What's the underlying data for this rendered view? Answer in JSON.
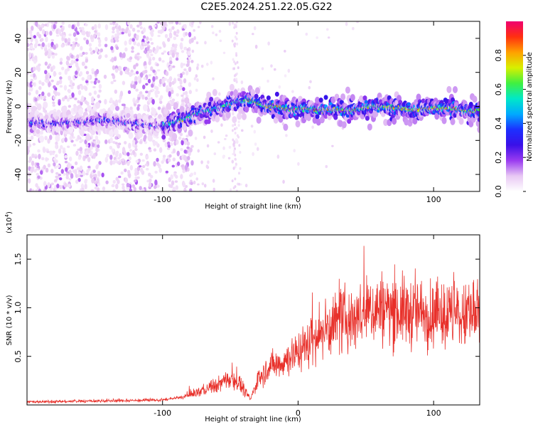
{
  "title": "C2E5.2024.251.22.05.G22",
  "chart_data": [
    {
      "type": "heatmap",
      "title": "C2E5.2024.251.22.05.G22",
      "xlabel": "Height of straight line (km)",
      "ylabel": "Frequency (Hz)",
      "xlim": [
        -200,
        134
      ],
      "ylim": [
        -50,
        50
      ],
      "x_ticks": [
        -100,
        0,
        100
      ],
      "y_ticks": [
        -40,
        -20,
        0,
        20,
        40
      ],
      "colorbar": {
        "label": "Normalized spectral amplitude",
        "range": [
          0,
          1
        ],
        "ticks": [
          0.0,
          0.2,
          0.4,
          0.6,
          0.8
        ],
        "tick_labels": [
          "0.0",
          "0.2",
          "0.4",
          "0.6",
          "0.8"
        ],
        "colormap": [
          "#ffffff",
          "#e8c8f4",
          "#9a3bf0",
          "#3a10e8",
          "#1c30ff",
          "#00aaff",
          "#00e8c8",
          "#40f040",
          "#d8f000",
          "#ffa000",
          "#ff3010",
          "#f00070"
        ]
      },
      "ridge": {
        "x": [
          -200,
          -180,
          -160,
          -140,
          -120,
          -105,
          -95,
          -85,
          -75,
          -65,
          -55,
          -45,
          -35,
          -25,
          -15,
          -5,
          5,
          15,
          25,
          40,
          55,
          70,
          85,
          100,
          115,
          125,
          134
        ],
        "y": [
          -9,
          -10,
          -9,
          -8,
          -10,
          -12,
          -10,
          -8,
          -4,
          -2,
          0,
          3,
          4,
          0,
          0,
          -2,
          -1,
          -2,
          -2,
          -2,
          0,
          -1,
          -2,
          -1,
          -1,
          -3,
          -2
        ]
      }
    },
    {
      "type": "line",
      "xlabel": "Height of straight line (km)",
      "ylabel": "SNR (10 * v/v)",
      "y_multiplier": "(x10",
      "y_multiplier_exp": "4",
      "xlim": [
        -200,
        134
      ],
      "ylim": [
        0,
        1.75
      ],
      "x_ticks": [
        -100,
        0,
        100
      ],
      "y_ticks": [
        0.5,
        1.0,
        1.5
      ],
      "y_tick_labels": [
        "0.5",
        "1.0",
        "1.5"
      ],
      "line_color": "#e8302a",
      "envelope": {
        "x": [
          -200,
          -150,
          -100,
          -85,
          -70,
          -60,
          -50,
          -45,
          -40,
          -35,
          -30,
          -25,
          -20,
          -10,
          0,
          10,
          20,
          30,
          40,
          50,
          60,
          70,
          80,
          90,
          100,
          110,
          120,
          134
        ],
        "y": [
          0.03,
          0.04,
          0.05,
          0.08,
          0.15,
          0.2,
          0.28,
          0.25,
          0.15,
          0.06,
          0.25,
          0.35,
          0.4,
          0.45,
          0.55,
          0.65,
          0.78,
          0.85,
          0.9,
          0.95,
          1.0,
          0.98,
          0.95,
          0.95,
          0.9,
          0.92,
          0.9,
          0.88
        ]
      }
    }
  ]
}
